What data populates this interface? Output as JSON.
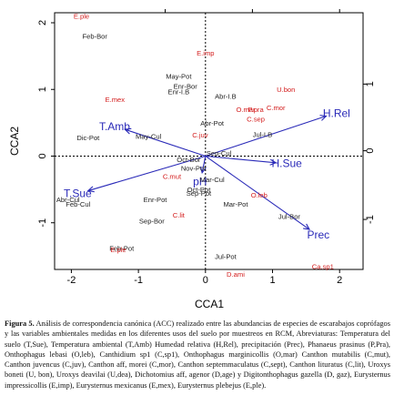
{
  "chart_data": {
    "type": "scatter",
    "title": "",
    "xlabel": "CCA1",
    "ylabel": "CCA2",
    "xlim": [
      -2.25,
      2.35
    ],
    "ylim": [
      -1.7,
      2.15
    ],
    "x_ticks": [
      -2,
      -1,
      0,
      1,
      2
    ],
    "y_ticks": [
      -1,
      0,
      1,
      2
    ],
    "right_ticks": [
      -1,
      0,
      1
    ],
    "right_ticks_y": [
      -0.95,
      0.08,
      1.08
    ],
    "top_ticks": [
      -0.6,
      0.7,
      2.0
    ],
    "grid": false,
    "zero_lines": true,
    "colors": {
      "sites": "#222222",
      "species": "#d42020",
      "vectors": "#2a2ab8"
    },
    "sites": [
      {
        "label": "Feb-Bor",
        "x": -1.65,
        "y": 1.8
      },
      {
        "label": "May-Pot",
        "x": -0.4,
        "y": 1.2
      },
      {
        "label": "Enr-Bor",
        "x": -0.3,
        "y": 1.05
      },
      {
        "label": "Enr-I.B",
        "x": -0.4,
        "y": 0.97
      },
      {
        "label": "Abr-I.B",
        "x": 0.3,
        "y": 0.9
      },
      {
        "label": "Dic-Pot",
        "x": -1.75,
        "y": 0.28
      },
      {
        "label": "May-Cul",
        "x": -0.85,
        "y": 0.3
      },
      {
        "label": "Abr-Pot",
        "x": 0.1,
        "y": 0.5
      },
      {
        "label": "Oct-Bor",
        "x": -0.25,
        "y": -0.05
      },
      {
        "label": "Nov-Pot",
        "x": -0.18,
        "y": -0.18
      },
      {
        "label": "Mar-Cul",
        "x": 0.1,
        "y": -0.35
      },
      {
        "label": "Oct-Pot",
        "x": -0.1,
        "y": -0.5
      },
      {
        "label": "Enr-Pot",
        "x": -0.75,
        "y": -0.65
      },
      {
        "label": "Sep-Pot",
        "x": -0.1,
        "y": -0.55
      },
      {
        "label": "Mar-Pot",
        "x": 0.45,
        "y": -0.72
      },
      {
        "label": "Sep-Bor",
        "x": -0.8,
        "y": -0.97
      },
      {
        "label": "Abr-Cul",
        "x": -2.05,
        "y": -0.65
      },
      {
        "label": "Feb-Cul",
        "x": -1.9,
        "y": -0.72
      },
      {
        "label": "Jul-Bor",
        "x": 1.25,
        "y": -0.9
      },
      {
        "label": "Feb-Pot",
        "x": -1.25,
        "y": -1.38
      },
      {
        "label": "Jul-Pot",
        "x": 0.3,
        "y": -1.5
      },
      {
        "label": "Jul-I.B",
        "x": 0.85,
        "y": 0.33
      },
      {
        "label": "Sep-Cul",
        "x": 0.2,
        "y": 0.05
      }
    ],
    "species": [
      {
        "label": "E.ple",
        "x": -1.85,
        "y": 2.1
      },
      {
        "label": "E.imp",
        "x": 0.0,
        "y": 1.55
      },
      {
        "label": "E.mex",
        "x": -1.35,
        "y": 0.85
      },
      {
        "label": "U.bon",
        "x": 1.2,
        "y": 1.0
      },
      {
        "label": "O.mar",
        "x": 0.6,
        "y": 0.7
      },
      {
        "label": "P.pra",
        "x": 0.75,
        "y": 0.7
      },
      {
        "label": "C.mor",
        "x": 1.05,
        "y": 0.73
      },
      {
        "label": "C.sep",
        "x": 0.75,
        "y": 0.56
      },
      {
        "label": "C.juv",
        "x": -0.08,
        "y": 0.32
      },
      {
        "label": "C.mut",
        "x": -0.5,
        "y": -0.3
      },
      {
        "label": "O.leb",
        "x": 0.8,
        "y": -0.58
      },
      {
        "label": "C.lit",
        "x": -0.4,
        "y": -0.88
      },
      {
        "label": "E.ple",
        "x": -1.3,
        "y": -1.4
      },
      {
        "label": "D.ami",
        "x": 0.45,
        "y": -1.77
      },
      {
        "label": "Ca.sp1",
        "x": 1.75,
        "y": -1.65
      }
    ],
    "vectors": [
      {
        "label": "H.Rel",
        "x": 1.8,
        "y": 0.6
      },
      {
        "label": "T.Amb",
        "x": -1.2,
        "y": 0.4
      },
      {
        "label": "T.Sue",
        "x": -1.75,
        "y": -0.52
      },
      {
        "label": "Prec",
        "x": 1.55,
        "y": -1.1
      },
      {
        "label": "H.Sue",
        "x": 1.05,
        "y": -0.1
      },
      {
        "label": "pH",
        "x": -0.05,
        "y": -0.25
      }
    ]
  },
  "caption": {
    "label": "Figura 5.",
    "text": " Análisis de correspondencia canónica (ACC) realizado entre las abundancias de especies de escarabajos coprófagos y las variables ambientales medidas en los diferentes usos del suelo por muestreos en RCM, Abreviaturas: Temperatura del suelo (T,Sue), Temperatura ambiental (T,Amb) Humedad relativa (H,Rel), precipitación (Prec), Phanaeus prasinus (P,Pra), Onthophagus lebasi (O,leb), Canthidium sp1 (C,sp1), Onthophagus marginicollis (O,mar) Canthon mutabilis (C,mut), Canthon juvencus (C,juv), Canthon aff, morei (C,mor), Canthon septemmaculatus (C,sept), Canthon lituratus (C,lit), Uroxys boneti (U, bon), Uroxys deavilai (U,dea), Dichotomius aff, agenor (D,age) y Digitonthophagus gazella (D, gaz), Eurysternus impressicollis (E,imp), Eurysternus mexicanus (E,mex), Eurysternus plebejus (E,ple)."
  }
}
